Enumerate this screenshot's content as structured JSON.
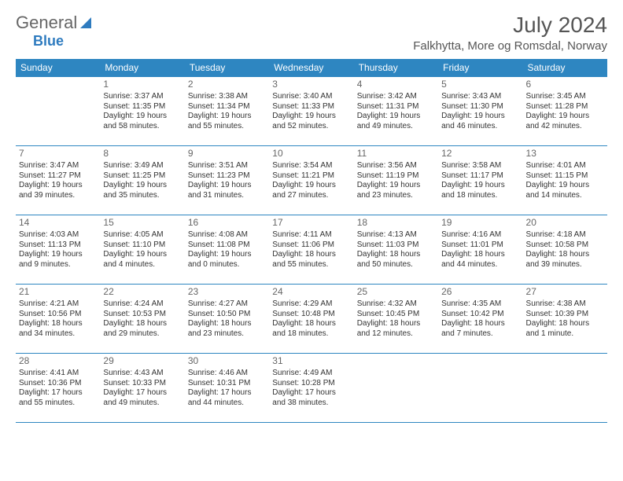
{
  "brand": {
    "part1": "General",
    "part2": "Blue"
  },
  "title": "July 2024",
  "location": "Falkhytta, More og Romsdal, Norway",
  "colors": {
    "header_bg": "#2e86c1",
    "header_text": "#ffffff",
    "border": "#2e86c1",
    "page_bg": "#ffffff",
    "text": "#333333",
    "title_text": "#555555",
    "brand_accent": "#2e7bbf"
  },
  "typography": {
    "title_fontsize": 28,
    "location_fontsize": 15,
    "dayheader_fontsize": 12,
    "cell_fontsize": 10,
    "daynum_fontsize": 12,
    "font_family": "Arial"
  },
  "day_headers": [
    "Sunday",
    "Monday",
    "Tuesday",
    "Wednesday",
    "Thursday",
    "Friday",
    "Saturday"
  ],
  "weeks": [
    [
      null,
      {
        "n": "1",
        "sr": "Sunrise: 3:37 AM",
        "ss": "Sunset: 11:35 PM",
        "d1": "Daylight: 19 hours",
        "d2": "and 58 minutes."
      },
      {
        "n": "2",
        "sr": "Sunrise: 3:38 AM",
        "ss": "Sunset: 11:34 PM",
        "d1": "Daylight: 19 hours",
        "d2": "and 55 minutes."
      },
      {
        "n": "3",
        "sr": "Sunrise: 3:40 AM",
        "ss": "Sunset: 11:33 PM",
        "d1": "Daylight: 19 hours",
        "d2": "and 52 minutes."
      },
      {
        "n": "4",
        "sr": "Sunrise: 3:42 AM",
        "ss": "Sunset: 11:31 PM",
        "d1": "Daylight: 19 hours",
        "d2": "and 49 minutes."
      },
      {
        "n": "5",
        "sr": "Sunrise: 3:43 AM",
        "ss": "Sunset: 11:30 PM",
        "d1": "Daylight: 19 hours",
        "d2": "and 46 minutes."
      },
      {
        "n": "6",
        "sr": "Sunrise: 3:45 AM",
        "ss": "Sunset: 11:28 PM",
        "d1": "Daylight: 19 hours",
        "d2": "and 42 minutes."
      }
    ],
    [
      {
        "n": "7",
        "sr": "Sunrise: 3:47 AM",
        "ss": "Sunset: 11:27 PM",
        "d1": "Daylight: 19 hours",
        "d2": "and 39 minutes."
      },
      {
        "n": "8",
        "sr": "Sunrise: 3:49 AM",
        "ss": "Sunset: 11:25 PM",
        "d1": "Daylight: 19 hours",
        "d2": "and 35 minutes."
      },
      {
        "n": "9",
        "sr": "Sunrise: 3:51 AM",
        "ss": "Sunset: 11:23 PM",
        "d1": "Daylight: 19 hours",
        "d2": "and 31 minutes."
      },
      {
        "n": "10",
        "sr": "Sunrise: 3:54 AM",
        "ss": "Sunset: 11:21 PM",
        "d1": "Daylight: 19 hours",
        "d2": "and 27 minutes."
      },
      {
        "n": "11",
        "sr": "Sunrise: 3:56 AM",
        "ss": "Sunset: 11:19 PM",
        "d1": "Daylight: 19 hours",
        "d2": "and 23 minutes."
      },
      {
        "n": "12",
        "sr": "Sunrise: 3:58 AM",
        "ss": "Sunset: 11:17 PM",
        "d1": "Daylight: 19 hours",
        "d2": "and 18 minutes."
      },
      {
        "n": "13",
        "sr": "Sunrise: 4:01 AM",
        "ss": "Sunset: 11:15 PM",
        "d1": "Daylight: 19 hours",
        "d2": "and 14 minutes."
      }
    ],
    [
      {
        "n": "14",
        "sr": "Sunrise: 4:03 AM",
        "ss": "Sunset: 11:13 PM",
        "d1": "Daylight: 19 hours",
        "d2": "and 9 minutes."
      },
      {
        "n": "15",
        "sr": "Sunrise: 4:05 AM",
        "ss": "Sunset: 11:10 PM",
        "d1": "Daylight: 19 hours",
        "d2": "and 4 minutes."
      },
      {
        "n": "16",
        "sr": "Sunrise: 4:08 AM",
        "ss": "Sunset: 11:08 PM",
        "d1": "Daylight: 19 hours",
        "d2": "and 0 minutes."
      },
      {
        "n": "17",
        "sr": "Sunrise: 4:11 AM",
        "ss": "Sunset: 11:06 PM",
        "d1": "Daylight: 18 hours",
        "d2": "and 55 minutes."
      },
      {
        "n": "18",
        "sr": "Sunrise: 4:13 AM",
        "ss": "Sunset: 11:03 PM",
        "d1": "Daylight: 18 hours",
        "d2": "and 50 minutes."
      },
      {
        "n": "19",
        "sr": "Sunrise: 4:16 AM",
        "ss": "Sunset: 11:01 PM",
        "d1": "Daylight: 18 hours",
        "d2": "and 44 minutes."
      },
      {
        "n": "20",
        "sr": "Sunrise: 4:18 AM",
        "ss": "Sunset: 10:58 PM",
        "d1": "Daylight: 18 hours",
        "d2": "and 39 minutes."
      }
    ],
    [
      {
        "n": "21",
        "sr": "Sunrise: 4:21 AM",
        "ss": "Sunset: 10:56 PM",
        "d1": "Daylight: 18 hours",
        "d2": "and 34 minutes."
      },
      {
        "n": "22",
        "sr": "Sunrise: 4:24 AM",
        "ss": "Sunset: 10:53 PM",
        "d1": "Daylight: 18 hours",
        "d2": "and 29 minutes."
      },
      {
        "n": "23",
        "sr": "Sunrise: 4:27 AM",
        "ss": "Sunset: 10:50 PM",
        "d1": "Daylight: 18 hours",
        "d2": "and 23 minutes."
      },
      {
        "n": "24",
        "sr": "Sunrise: 4:29 AM",
        "ss": "Sunset: 10:48 PM",
        "d1": "Daylight: 18 hours",
        "d2": "and 18 minutes."
      },
      {
        "n": "25",
        "sr": "Sunrise: 4:32 AM",
        "ss": "Sunset: 10:45 PM",
        "d1": "Daylight: 18 hours",
        "d2": "and 12 minutes."
      },
      {
        "n": "26",
        "sr": "Sunrise: 4:35 AM",
        "ss": "Sunset: 10:42 PM",
        "d1": "Daylight: 18 hours",
        "d2": "and 7 minutes."
      },
      {
        "n": "27",
        "sr": "Sunrise: 4:38 AM",
        "ss": "Sunset: 10:39 PM",
        "d1": "Daylight: 18 hours",
        "d2": "and 1 minute."
      }
    ],
    [
      {
        "n": "28",
        "sr": "Sunrise: 4:41 AM",
        "ss": "Sunset: 10:36 PM",
        "d1": "Daylight: 17 hours",
        "d2": "and 55 minutes."
      },
      {
        "n": "29",
        "sr": "Sunrise: 4:43 AM",
        "ss": "Sunset: 10:33 PM",
        "d1": "Daylight: 17 hours",
        "d2": "and 49 minutes."
      },
      {
        "n": "30",
        "sr": "Sunrise: 4:46 AM",
        "ss": "Sunset: 10:31 PM",
        "d1": "Daylight: 17 hours",
        "d2": "and 44 minutes."
      },
      {
        "n": "31",
        "sr": "Sunrise: 4:49 AM",
        "ss": "Sunset: 10:28 PM",
        "d1": "Daylight: 17 hours",
        "d2": "and 38 minutes."
      },
      null,
      null,
      null
    ]
  ]
}
